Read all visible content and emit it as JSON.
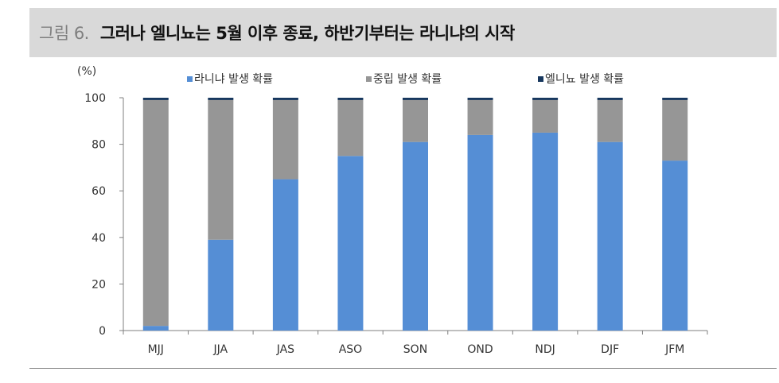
{
  "figure": {
    "label": "그림 6.",
    "title": "그러나 엘니뇨는 5월 이후 종료, 하반기부터는 라니냐의 시작"
  },
  "chart_data": {
    "type": "bar",
    "stacked": true,
    "unit_label": "(%)",
    "ylim": [
      0,
      100
    ],
    "yticks": [
      0,
      20,
      40,
      60,
      80,
      100
    ],
    "categories": [
      "MJJ",
      "JJA",
      "JAS",
      "ASO",
      "SON",
      "OND",
      "NDJ",
      "DJF",
      "JFM"
    ],
    "series": [
      {
        "name": "라니냐 발생 확률",
        "color": "#558ed5",
        "values": [
          2,
          39,
          65,
          75,
          81,
          84,
          85,
          81,
          73
        ]
      },
      {
        "name": "중립 발생 확률",
        "color": "#969696",
        "values": [
          97,
          60,
          34,
          24,
          18,
          15,
          14,
          18,
          26
        ]
      },
      {
        "name": "엘니뇨 발생 확률",
        "color": "#17375e",
        "values": [
          1,
          1,
          1,
          1,
          1,
          1,
          1,
          1,
          1
        ]
      }
    ],
    "legend_position": "top",
    "grid": false
  }
}
